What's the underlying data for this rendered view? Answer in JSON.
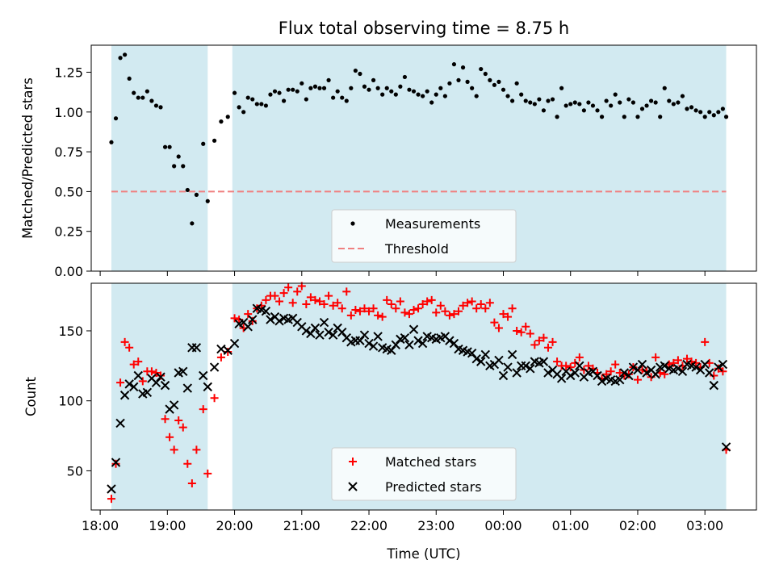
{
  "figure": {
    "title": "Flux total observing time = 8.75 h",
    "xlabel": "Time (UTC)"
  },
  "colors": {
    "shade": "#ADD8E6",
    "measurement": "#000000",
    "threshold": "#F08080",
    "matched": "#FF0000",
    "predicted": "#000000"
  },
  "chart_data": [
    {
      "type": "scatter",
      "ylabel": "Matched/Predicted stars",
      "ylim": [
        0,
        1.42
      ],
      "yticks": [
        0.0,
        0.25,
        0.5,
        0.75,
        1.0,
        1.25
      ],
      "ytick_labels": [
        "0.00",
        "0.25",
        "0.50",
        "0.75",
        "1.00",
        "1.25"
      ],
      "legend": {
        "placement": "lower-center",
        "entries": [
          "Measurements",
          "Threshold"
        ]
      },
      "shaded_intervals": [
        [
          "18:10",
          "19:36"
        ],
        [
          "19:58",
          "03:19"
        ]
      ],
      "threshold": 0.5,
      "series": [
        {
          "name": "Measurements",
          "marker": "dot",
          "x": [
            "18:10",
            "18:14",
            "18:18",
            "18:22",
            "18:26",
            "18:30",
            "18:34",
            "18:38",
            "18:42",
            "18:46",
            "18:50",
            "18:54",
            "18:58",
            "19:02",
            "19:06",
            "19:10",
            "19:14",
            "19:18",
            "19:22",
            "19:26",
            "19:32",
            "19:36",
            "19:42",
            "19:48",
            "19:54",
            "20:00",
            "20:04",
            "20:08",
            "20:12",
            "20:16",
            "20:20",
            "20:24",
            "20:28",
            "20:32",
            "20:36",
            "20:40",
            "20:44",
            "20:48",
            "20:52",
            "20:56",
            "21:00",
            "21:04",
            "21:08",
            "21:12",
            "21:16",
            "21:20",
            "21:24",
            "21:28",
            "21:32",
            "21:36",
            "21:40",
            "21:44",
            "21:48",
            "21:52",
            "21:56",
            "22:00",
            "22:04",
            "22:08",
            "22:12",
            "22:16",
            "22:20",
            "22:24",
            "22:28",
            "22:32",
            "22:36",
            "22:40",
            "22:44",
            "22:48",
            "22:52",
            "22:56",
            "23:00",
            "23:04",
            "23:08",
            "23:12",
            "23:16",
            "23:20",
            "23:24",
            "23:28",
            "23:32",
            "23:36",
            "23:40",
            "23:44",
            "23:48",
            "23:52",
            "23:56",
            "00:00",
            "00:04",
            "00:08",
            "00:12",
            "00:16",
            "00:20",
            "00:24",
            "00:28",
            "00:32",
            "00:36",
            "00:40",
            "00:44",
            "00:48",
            "00:52",
            "00:56",
            "01:00",
            "01:04",
            "01:08",
            "01:12",
            "01:16",
            "01:20",
            "01:24",
            "01:28",
            "01:32",
            "01:36",
            "01:40",
            "01:44",
            "01:48",
            "01:52",
            "01:56",
            "02:00",
            "02:04",
            "02:08",
            "02:12",
            "02:16",
            "02:20",
            "02:24",
            "02:28",
            "02:32",
            "02:36",
            "02:40",
            "02:44",
            "02:48",
            "02:52",
            "02:56",
            "03:00",
            "03:04",
            "03:08",
            "03:12",
            "03:16",
            "03:19"
          ],
          "y": [
            0.81,
            0.96,
            1.34,
            1.36,
            1.21,
            1.12,
            1.09,
            1.09,
            1.13,
            1.07,
            1.04,
            1.03,
            0.78,
            0.78,
            0.66,
            0.72,
            0.66,
            0.51,
            0.3,
            0.48,
            0.8,
            0.44,
            0.82,
            0.94,
            0.97,
            1.12,
            1.03,
            1.0,
            1.09,
            1.08,
            1.05,
            1.05,
            1.04,
            1.11,
            1.13,
            1.12,
            1.07,
            1.14,
            1.14,
            1.13,
            1.18,
            1.08,
            1.15,
            1.16,
            1.15,
            1.15,
            1.2,
            1.09,
            1.13,
            1.09,
            1.07,
            1.15,
            1.26,
            1.24,
            1.16,
            1.14,
            1.2,
            1.15,
            1.11,
            1.15,
            1.13,
            1.11,
            1.16,
            1.22,
            1.14,
            1.13,
            1.11,
            1.1,
            1.13,
            1.06,
            1.11,
            1.15,
            1.1,
            1.18,
            1.3,
            1.2,
            1.28,
            1.19,
            1.15,
            1.1,
            1.27,
            1.24,
            1.2,
            1.17,
            1.19,
            1.14,
            1.1,
            1.07,
            1.18,
            1.11,
            1.07,
            1.06,
            1.05,
            1.08,
            1.01,
            1.07,
            1.08,
            0.97,
            1.15,
            1.04,
            1.05,
            1.06,
            1.05,
            1.01,
            1.06,
            1.04,
            1.01,
            0.97,
            1.07,
            1.04,
            1.11,
            1.06,
            0.97,
            1.08,
            1.06,
            0.97,
            1.02,
            1.04,
            1.07,
            1.06,
            0.97,
            1.15,
            1.07,
            1.05,
            1.06,
            1.1,
            1.02,
            1.03,
            1.01,
            1.0,
            0.97,
            1.0,
            0.98,
            1.0,
            1.02,
            0.97
          ]
        },
        {
          "name": "Threshold",
          "style": "dashed",
          "value": 0.5
        }
      ]
    },
    {
      "type": "scatter",
      "ylabel": "Count",
      "ylim": [
        22,
        184
      ],
      "yticks": [
        50,
        100,
        150
      ],
      "ytick_labels": [
        "50",
        "100",
        "150"
      ],
      "legend": {
        "placement": "lower-center",
        "entries": [
          "Matched stars",
          "Predicted stars"
        ]
      },
      "shaded_intervals": [
        [
          "18:10",
          "19:36"
        ],
        [
          "19:58",
          "03:19"
        ]
      ],
      "x_range": [
        "17:52",
        "03:46"
      ],
      "xticks": [
        "18:00",
        "19:00",
        "20:00",
        "21:00",
        "22:00",
        "23:00",
        "00:00",
        "01:00",
        "02:00",
        "03:00"
      ],
      "series": [
        {
          "name": "Matched stars",
          "marker": "plus",
          "x": [
            "18:10",
            "18:14",
            "18:18",
            "18:22",
            "18:26",
            "18:30",
            "18:34",
            "18:38",
            "18:42",
            "18:46",
            "18:50",
            "18:54",
            "18:58",
            "19:02",
            "19:06",
            "19:10",
            "19:14",
            "19:18",
            "19:22",
            "19:26",
            "19:32",
            "19:36",
            "19:42",
            "19:48",
            "19:54",
            "20:00",
            "20:04",
            "20:08",
            "20:12",
            "20:16",
            "20:20",
            "20:24",
            "20:28",
            "20:32",
            "20:36",
            "20:40",
            "20:44",
            "20:48",
            "20:52",
            "20:56",
            "21:00",
            "21:04",
            "21:08",
            "21:12",
            "21:16",
            "21:20",
            "21:24",
            "21:28",
            "21:32",
            "21:36",
            "21:40",
            "21:44",
            "21:48",
            "21:52",
            "21:56",
            "22:00",
            "22:04",
            "22:08",
            "22:12",
            "22:16",
            "22:20",
            "22:24",
            "22:28",
            "22:32",
            "22:36",
            "22:40",
            "22:44",
            "22:48",
            "22:52",
            "22:56",
            "23:00",
            "23:04",
            "23:08",
            "23:12",
            "23:16",
            "23:20",
            "23:24",
            "23:28",
            "23:32",
            "23:36",
            "23:40",
            "23:44",
            "23:48",
            "23:52",
            "23:56",
            "00:00",
            "00:04",
            "00:08",
            "00:12",
            "00:16",
            "00:20",
            "00:24",
            "00:28",
            "00:32",
            "00:36",
            "00:40",
            "00:44",
            "00:48",
            "00:52",
            "00:56",
            "01:00",
            "01:04",
            "01:08",
            "01:12",
            "01:16",
            "01:20",
            "01:24",
            "01:28",
            "01:32",
            "01:36",
            "01:40",
            "01:44",
            "01:48",
            "01:52",
            "01:56",
            "02:00",
            "02:04",
            "02:08",
            "02:12",
            "02:16",
            "02:20",
            "02:24",
            "02:28",
            "02:32",
            "02:36",
            "02:40",
            "02:44",
            "02:48",
            "02:52",
            "02:56",
            "03:00",
            "03:04",
            "03:08",
            "03:12",
            "03:16",
            "03:19"
          ],
          "y": [
            30,
            55,
            113,
            142,
            138,
            126,
            128,
            114,
            121,
            121,
            120,
            118,
            87,
            74,
            65,
            86,
            81,
            55,
            41,
            65,
            94,
            48,
            102,
            131,
            135,
            159,
            158,
            152,
            162,
            157,
            166,
            168,
            172,
            175,
            175,
            171,
            177,
            181,
            170,
            178,
            182,
            169,
            174,
            172,
            171,
            169,
            175,
            168,
            170,
            166,
            178,
            161,
            165,
            164,
            166,
            164,
            166,
            161,
            160,
            172,
            169,
            166,
            171,
            163,
            162,
            165,
            166,
            169,
            171,
            172,
            163,
            168,
            164,
            161,
            162,
            164,
            168,
            170,
            171,
            166,
            169,
            166,
            170,
            156,
            152,
            162,
            160,
            166,
            150,
            149,
            153,
            148,
            140,
            143,
            145,
            138,
            142,
            128,
            125,
            125,
            124,
            127,
            131,
            122,
            125,
            123,
            120,
            116,
            119,
            121,
            126,
            120,
            118,
            119,
            124,
            115,
            122,
            121,
            117,
            131,
            120,
            119,
            126,
            127,
            129,
            125,
            130,
            128,
            127,
            124,
            142,
            127,
            118,
            123,
            121,
            65
          ]
        },
        {
          "name": "Predicted stars",
          "marker": "x",
          "x": [
            "18:10",
            "18:14",
            "18:18",
            "18:22",
            "18:26",
            "18:30",
            "18:34",
            "18:38",
            "18:42",
            "18:46",
            "18:50",
            "18:54",
            "18:58",
            "19:02",
            "19:06",
            "19:10",
            "19:14",
            "19:18",
            "19:22",
            "19:26",
            "19:32",
            "19:36",
            "19:42",
            "19:48",
            "19:54",
            "20:00",
            "20:04",
            "20:08",
            "20:12",
            "20:16",
            "20:20",
            "20:24",
            "20:28",
            "20:32",
            "20:36",
            "20:40",
            "20:44",
            "20:48",
            "20:52",
            "20:56",
            "21:00",
            "21:04",
            "21:08",
            "21:12",
            "21:16",
            "21:20",
            "21:24",
            "21:28",
            "21:32",
            "21:36",
            "21:40",
            "21:44",
            "21:48",
            "21:52",
            "21:56",
            "22:00",
            "22:04",
            "22:08",
            "22:12",
            "22:16",
            "22:20",
            "22:24",
            "22:28",
            "22:32",
            "22:36",
            "22:40",
            "22:44",
            "22:48",
            "22:52",
            "22:56",
            "23:00",
            "23:04",
            "23:08",
            "23:12",
            "23:16",
            "23:20",
            "23:24",
            "23:28",
            "23:32",
            "23:36",
            "23:40",
            "23:44",
            "23:48",
            "23:52",
            "23:56",
            "00:00",
            "00:04",
            "00:08",
            "00:12",
            "00:16",
            "00:20",
            "00:24",
            "00:28",
            "00:32",
            "00:36",
            "00:40",
            "00:44",
            "00:48",
            "00:52",
            "00:56",
            "01:00",
            "01:04",
            "01:08",
            "01:12",
            "01:16",
            "01:20",
            "01:24",
            "01:28",
            "01:32",
            "01:36",
            "01:40",
            "01:44",
            "01:48",
            "01:52",
            "01:56",
            "02:00",
            "02:04",
            "02:08",
            "02:12",
            "02:16",
            "02:20",
            "02:24",
            "02:28",
            "02:32",
            "02:36",
            "02:40",
            "02:44",
            "02:48",
            "02:52",
            "02:56",
            "03:00",
            "03:04",
            "03:08",
            "03:12",
            "03:16",
            "03:19"
          ],
          "y": [
            37,
            56,
            84,
            104,
            112,
            110,
            118,
            105,
            106,
            116,
            113,
            117,
            111,
            94,
            97,
            120,
            121,
            109,
            138,
            138,
            118,
            110,
            124,
            137,
            136,
            141,
            155,
            156,
            153,
            158,
            166,
            165,
            164,
            158,
            160,
            157,
            159,
            158,
            159,
            156,
            153,
            150,
            148,
            152,
            147,
            156,
            149,
            147,
            152,
            149,
            145,
            142,
            143,
            143,
            147,
            141,
            139,
            146,
            138,
            137,
            136,
            140,
            144,
            145,
            140,
            151,
            143,
            141,
            146,
            145,
            144,
            145,
            146,
            143,
            141,
            137,
            136,
            135,
            134,
            130,
            128,
            133,
            125,
            126,
            129,
            118,
            124,
            133,
            120,
            125,
            125,
            123,
            128,
            127,
            128,
            120,
            122,
            119,
            116,
            121,
            118,
            120,
            125,
            117,
            120,
            121,
            118,
            114,
            116,
            115,
            114,
            115,
            120,
            118,
            124,
            122,
            126,
            120,
            122,
            119,
            124,
            125,
            123,
            122,
            123,
            121,
            126,
            125,
            124,
            122,
            126,
            120,
            111,
            124,
            126,
            67
          ]
        }
      ]
    }
  ]
}
